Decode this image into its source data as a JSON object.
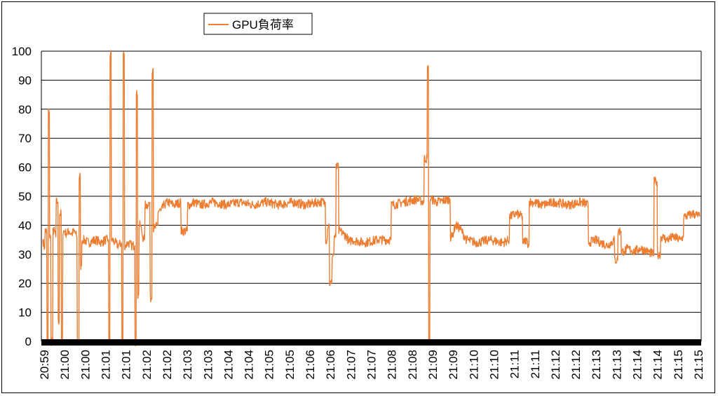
{
  "chart_data": {
    "type": "line",
    "title": "",
    "xlabel": "",
    "ylabel": "",
    "ylim": [
      0,
      100
    ],
    "yticks": [
      0,
      10,
      20,
      30,
      40,
      50,
      60,
      70,
      80,
      90,
      100
    ],
    "xticks": [
      "20:59",
      "21:00",
      "21:00",
      "21:01",
      "21:01",
      "21:02",
      "21:02",
      "21:03",
      "21:03",
      "21:04",
      "21:04",
      "21:05",
      "21:05",
      "21:06",
      "21:06",
      "21:07",
      "21:07",
      "21:08",
      "21:08",
      "21:09",
      "21:09",
      "21:10",
      "21:10",
      "21:11",
      "21:11",
      "21:12",
      "21:12",
      "21:13",
      "21:13",
      "21:14",
      "21:14",
      "21:15",
      "21:15"
    ],
    "grid": true,
    "legend": "top-left",
    "series": [
      {
        "name": "GPU負荷率",
        "color": "#ED7D31",
        "x_index_max": 100,
        "points": [
          [
            0,
            35
          ],
          [
            0.3,
            32
          ],
          [
            0.6,
            38
          ],
          [
            0.8,
            0
          ],
          [
            1.0,
            79
          ],
          [
            1.2,
            36
          ],
          [
            1.5,
            0
          ],
          [
            1.8,
            38
          ],
          [
            2.0,
            36
          ],
          [
            2.3,
            48
          ],
          [
            2.5,
            7
          ],
          [
            2.8,
            44
          ],
          [
            3.0,
            0
          ],
          [
            3.3,
            38
          ],
          [
            3.6,
            37
          ],
          [
            4.0,
            38
          ],
          [
            4.4,
            37
          ],
          [
            4.8,
            38
          ],
          [
            5.2,
            36
          ],
          [
            5.5,
            0
          ],
          [
            5.7,
            57
          ],
          [
            5.9,
            26
          ],
          [
            6.2,
            35
          ],
          [
            7,
            34
          ],
          [
            8,
            35
          ],
          [
            9,
            34
          ],
          [
            9.5,
            35
          ],
          [
            10.0,
            35
          ],
          [
            10.2,
            0
          ],
          [
            10.4,
            99
          ],
          [
            10.6,
            35
          ],
          [
            11,
            34
          ],
          [
            11.5,
            33
          ],
          [
            12.0,
            34
          ],
          [
            12.2,
            0
          ],
          [
            12.4,
            99
          ],
          [
            12.6,
            33
          ],
          [
            13,
            34
          ],
          [
            13.5,
            33
          ],
          [
            14.0,
            33
          ],
          [
            14.2,
            0
          ],
          [
            14.4,
            85
          ],
          [
            14.6,
            16
          ],
          [
            14.9,
            40
          ],
          [
            15.2,
            36
          ],
          [
            15.5,
            35
          ],
          [
            16.0,
            47
          ],
          [
            16.3,
            48
          ],
          [
            16.6,
            15
          ],
          [
            16.8,
            94
          ],
          [
            17.0,
            39
          ],
          [
            17.5,
            40
          ],
          [
            18.0,
            45
          ],
          [
            18.5,
            47
          ],
          [
            19,
            48
          ],
          [
            20,
            47
          ],
          [
            21,
            48
          ],
          [
            22,
            38
          ],
          [
            22.5,
            47
          ],
          [
            23,
            48
          ],
          [
            24,
            47
          ],
          [
            26,
            48
          ],
          [
            28,
            47
          ],
          [
            30,
            48
          ],
          [
            32,
            47
          ],
          [
            34,
            48
          ],
          [
            36,
            47
          ],
          [
            38,
            48
          ],
          [
            40,
            47
          ],
          [
            42,
            48
          ],
          [
            43,
            48
          ],
          [
            43.3,
            35
          ],
          [
            43.6,
            40
          ],
          [
            44.0,
            20
          ],
          [
            44.3,
            30
          ],
          [
            44.6,
            36
          ],
          [
            45.0,
            60
          ],
          [
            45.3,
            38
          ],
          [
            45.8,
            37
          ],
          [
            46.3,
            36
          ],
          [
            46.6,
            34
          ],
          [
            47,
            35
          ],
          [
            49,
            34
          ],
          [
            51,
            35
          ],
          [
            53,
            35
          ],
          [
            53.3,
            47
          ],
          [
            55,
            48
          ],
          [
            57,
            49
          ],
          [
            58,
            48
          ],
          [
            58.5,
            63
          ],
          [
            58.7,
            94
          ],
          [
            58.9,
            0
          ],
          [
            59.1,
            49
          ],
          [
            60,
            48
          ],
          [
            62,
            49
          ],
          [
            62.3,
            36
          ],
          [
            62.8,
            40
          ],
          [
            63.5,
            39
          ],
          [
            64,
            37
          ],
          [
            64.5,
            35
          ],
          [
            66,
            34
          ],
          [
            68,
            35
          ],
          [
            70,
            34
          ],
          [
            71,
            35
          ],
          [
            71.2,
            43
          ],
          [
            72,
            44
          ],
          [
            73,
            43
          ],
          [
            73.2,
            34
          ],
          [
            73.6,
            35
          ],
          [
            74,
            33
          ],
          [
            74.4,
            48
          ],
          [
            76,
            47
          ],
          [
            78,
            48
          ],
          [
            80,
            47
          ],
          [
            82,
            48
          ],
          [
            83,
            47
          ],
          [
            83.2,
            34
          ],
          [
            84,
            35
          ],
          [
            85,
            34
          ],
          [
            86,
            33
          ],
          [
            87,
            35
          ],
          [
            87.5,
            28
          ],
          [
            88,
            38
          ],
          [
            88.5,
            31
          ],
          [
            89,
            32
          ],
          [
            90,
            31
          ],
          [
            91,
            32
          ],
          [
            92,
            31
          ],
          [
            93,
            30
          ],
          [
            93.5,
            55
          ],
          [
            94,
            30
          ],
          [
            94.3,
            36
          ],
          [
            95,
            35
          ],
          [
            96,
            36
          ],
          [
            97,
            35
          ],
          [
            97.5,
            36
          ],
          [
            97.8,
            43
          ],
          [
            99,
            44
          ],
          [
            100,
            43
          ]
        ]
      }
    ]
  }
}
